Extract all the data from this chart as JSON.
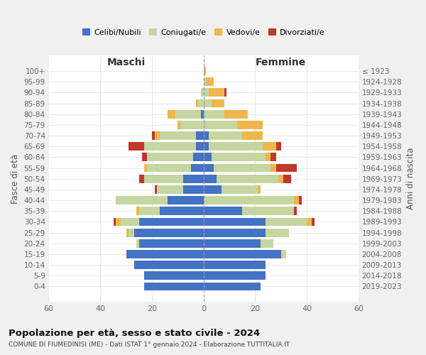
{
  "age_groups": [
    "100+",
    "95-99",
    "90-94",
    "85-89",
    "80-84",
    "75-79",
    "70-74",
    "65-69",
    "60-64",
    "55-59",
    "50-54",
    "45-49",
    "40-44",
    "35-39",
    "30-34",
    "25-29",
    "20-24",
    "15-19",
    "10-14",
    "5-9",
    "0-4"
  ],
  "birth_years": [
    "≤ 1923",
    "1924-1928",
    "1929-1933",
    "1934-1938",
    "1939-1943",
    "1944-1948",
    "1949-1953",
    "1954-1958",
    "1959-1963",
    "1964-1968",
    "1969-1973",
    "1974-1978",
    "1979-1983",
    "1984-1988",
    "1989-1993",
    "1994-1998",
    "1999-2003",
    "2004-2008",
    "2009-2013",
    "2014-2018",
    "2019-2023"
  ],
  "maschi": {
    "celibi": [
      0,
      0,
      0,
      0,
      1,
      0,
      3,
      3,
      4,
      5,
      8,
      8,
      14,
      17,
      25,
      27,
      25,
      30,
      27,
      23,
      23
    ],
    "coniugati": [
      0,
      0,
      1,
      2,
      10,
      9,
      14,
      20,
      18,
      17,
      15,
      10,
      20,
      8,
      7,
      2,
      1,
      0,
      0,
      0,
      0
    ],
    "vedovi": [
      0,
      0,
      0,
      1,
      3,
      1,
      2,
      0,
      0,
      1,
      0,
      0,
      0,
      1,
      2,
      1,
      0,
      0,
      0,
      0,
      0
    ],
    "divorziati": [
      0,
      0,
      0,
      0,
      0,
      0,
      1,
      6,
      2,
      0,
      2,
      1,
      0,
      0,
      1,
      0,
      0,
      0,
      0,
      0,
      0
    ]
  },
  "femmine": {
    "nubili": [
      0,
      0,
      0,
      0,
      0,
      0,
      2,
      2,
      3,
      4,
      5,
      7,
      0,
      15,
      24,
      24,
      22,
      30,
      24,
      24,
      22
    ],
    "coniugate": [
      0,
      1,
      2,
      3,
      8,
      13,
      13,
      21,
      21,
      22,
      24,
      14,
      35,
      20,
      16,
      9,
      5,
      2,
      0,
      0,
      0
    ],
    "vedove": [
      1,
      3,
      6,
      5,
      9,
      10,
      8,
      5,
      2,
      2,
      2,
      1,
      2,
      0,
      2,
      0,
      0,
      0,
      0,
      0,
      0
    ],
    "divorziate": [
      0,
      0,
      1,
      0,
      0,
      0,
      0,
      2,
      2,
      8,
      3,
      0,
      1,
      1,
      1,
      0,
      0,
      0,
      0,
      0,
      0
    ]
  },
  "colors": {
    "celibi_nubili": "#4472c4",
    "coniugati": "#c5d6a0",
    "vedovi": "#f0b64c",
    "divorziati": "#c0392b"
  },
  "xlim": 60,
  "title": "Popolazione per età, sesso e stato civile - 2024",
  "subtitle": "COMUNE DI FIUMEDINISI (ME) - Dati ISTAT 1° gennaio 2024 - Elaborazione TUTTITALIA.IT",
  "ylabel_left": "Fasce di età",
  "ylabel_right": "Anni di nascita",
  "xlabel_left": "Maschi",
  "xlabel_right": "Femmine",
  "bg_color": "#f0f0f0",
  "plot_bg": "#ffffff"
}
